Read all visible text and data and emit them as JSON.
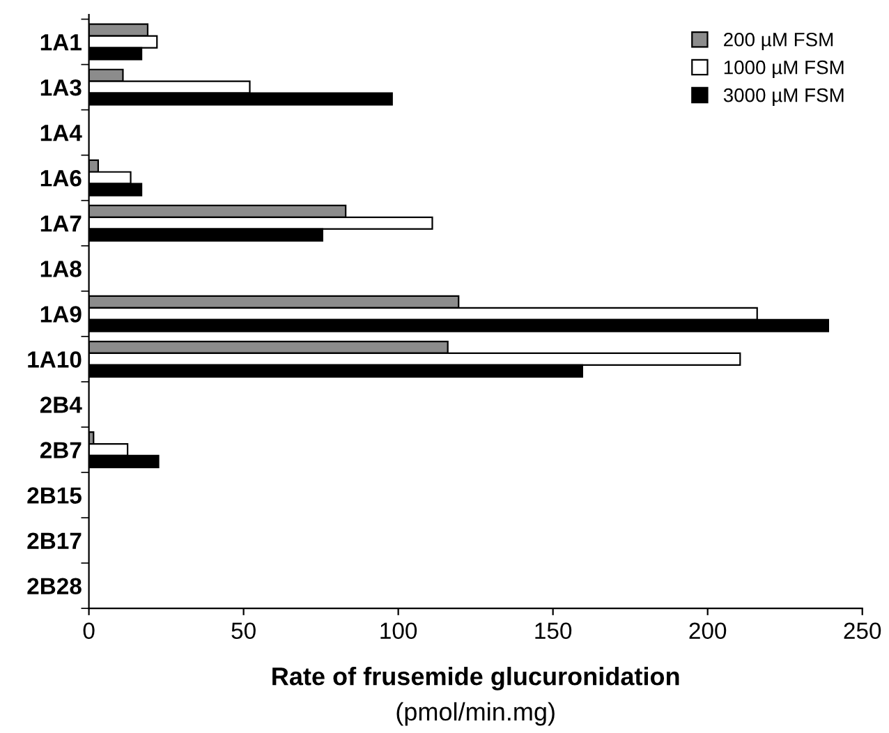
{
  "chart_data": {
    "type": "bar",
    "orientation": "horizontal",
    "categories": [
      "1A1",
      "1A3",
      "1A4",
      "1A6",
      "1A7",
      "1A8",
      "1A9",
      "1A10",
      "2B4",
      "2B7",
      "2B15",
      "2B17",
      "2B28"
    ],
    "series": [
      {
        "name": "200 µM FSM",
        "color": "#8c8c8c",
        "values": [
          19,
          11,
          null,
          3,
          83,
          null,
          119.5,
          116,
          null,
          1.5,
          null,
          null,
          null
        ]
      },
      {
        "name": "1000 µM FSM",
        "color": "#ffffff",
        "values": [
          22,
          52,
          null,
          13.5,
          111,
          null,
          216,
          210.5,
          null,
          12.5,
          null,
          null,
          null
        ]
      },
      {
        "name": "3000 µM FSM",
        "color": "#000000",
        "values": [
          17,
          98,
          null,
          17,
          75.5,
          null,
          239,
          159.5,
          null,
          22.5,
          null,
          null,
          null
        ]
      }
    ],
    "xlim": [
      0,
      250
    ],
    "xticks": [
      0,
      50,
      100,
      150,
      200,
      250
    ],
    "xlabel": "Rate of frusemide glucuronidation",
    "annotations": [
      "(pmol/min.mg)"
    ],
    "legend": "top right",
    "grid": false
  }
}
